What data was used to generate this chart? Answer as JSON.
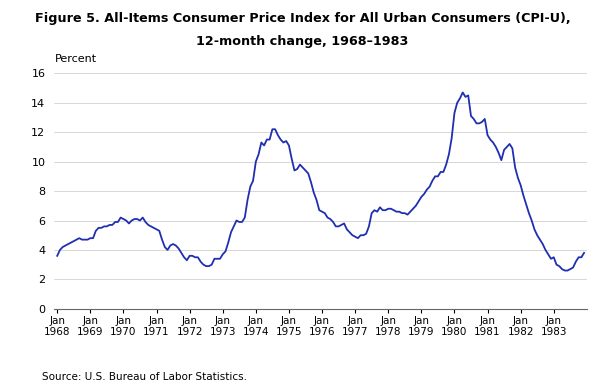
{
  "title_line1": "Figure 5. All-Items Consumer Price Index for All Urban Consumers (CPI-U),",
  "title_line2": "12-month change, 1968–1983",
  "ylabel": "Percent",
  "source": "Source: U.S. Bureau of Labor Statistics.",
  "line_color": "#1f2fb0",
  "background_color": "#ffffff",
  "ylim": [
    0,
    16
  ],
  "yticks": [
    0,
    2,
    4,
    6,
    8,
    10,
    12,
    14,
    16
  ],
  "cpi_data": [
    3.6,
    4.0,
    4.2,
    4.3,
    4.4,
    4.5,
    4.6,
    4.7,
    4.8,
    4.7,
    4.7,
    4.7,
    4.8,
    4.8,
    5.3,
    5.5,
    5.5,
    5.6,
    5.6,
    5.7,
    5.7,
    5.9,
    5.9,
    6.2,
    6.1,
    6.0,
    5.8,
    6.0,
    6.1,
    6.1,
    6.0,
    6.2,
    5.9,
    5.7,
    5.6,
    5.5,
    5.4,
    5.3,
    4.7,
    4.2,
    4.0,
    4.3,
    4.4,
    4.3,
    4.1,
    3.8,
    3.5,
    3.3,
    3.6,
    3.6,
    3.5,
    3.5,
    3.2,
    3.0,
    2.9,
    2.9,
    3.0,
    3.4,
    3.4,
    3.4,
    3.7,
    3.9,
    4.5,
    5.2,
    5.6,
    6.0,
    5.9,
    5.9,
    6.2,
    7.4,
    8.3,
    8.7,
    10.0,
    10.5,
    11.3,
    11.1,
    11.5,
    11.5,
    12.2,
    12.2,
    11.8,
    11.5,
    11.3,
    11.4,
    11.1,
    10.2,
    9.4,
    9.5,
    9.8,
    9.6,
    9.4,
    9.2,
    8.6,
    7.9,
    7.4,
    6.7,
    6.6,
    6.5,
    6.2,
    6.1,
    5.9,
    5.6,
    5.6,
    5.7,
    5.8,
    5.4,
    5.2,
    5.0,
    4.9,
    4.8,
    5.0,
    5.0,
    5.1,
    5.6,
    6.5,
    6.7,
    6.6,
    6.9,
    6.7,
    6.7,
    6.8,
    6.8,
    6.7,
    6.6,
    6.6,
    6.5,
    6.5,
    6.4,
    6.6,
    6.8,
    7.0,
    7.3,
    7.6,
    7.8,
    8.1,
    8.3,
    8.7,
    9.0,
    9.0,
    9.3,
    9.3,
    9.8,
    10.5,
    11.6,
    13.3,
    14.0,
    14.3,
    14.7,
    14.4,
    14.5,
    13.1,
    12.9,
    12.6,
    12.6,
    12.7,
    12.9,
    11.8,
    11.5,
    11.3,
    11.0,
    10.6,
    10.1,
    10.8,
    11.0,
    11.2,
    10.9,
    9.6,
    8.9,
    8.4,
    7.7,
    7.1,
    6.5,
    6.0,
    5.4,
    5.0,
    4.7,
    4.4,
    4.0,
    3.7,
    3.4,
    3.5,
    3.0,
    2.9,
    2.7,
    2.6,
    2.6,
    2.7,
    2.8,
    3.2,
    3.5,
    3.5,
    3.8
  ]
}
